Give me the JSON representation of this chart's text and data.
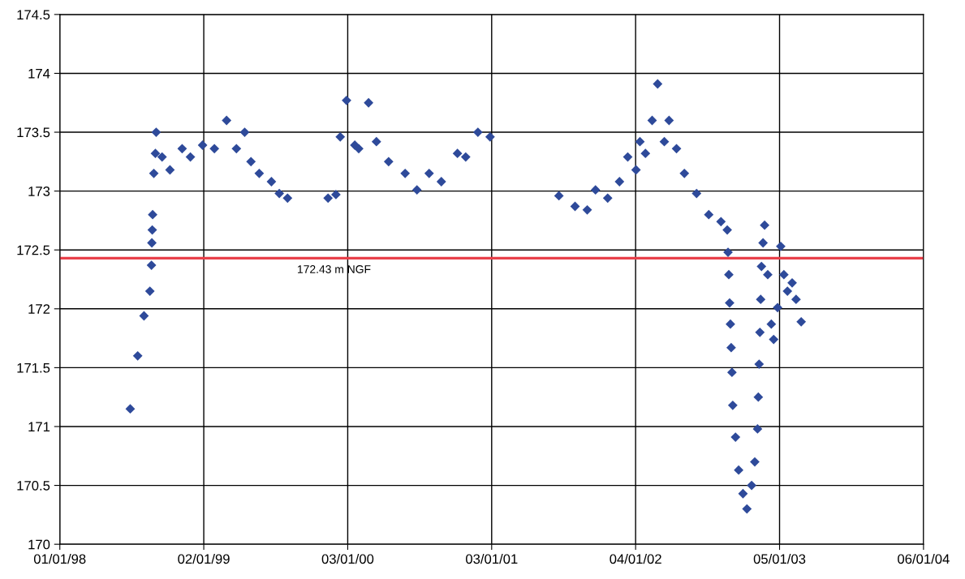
{
  "chart_data": {
    "type": "scatter",
    "marker": "diamond",
    "grid": true,
    "xlim": [
      "1998-01-01",
      "2004-01-06"
    ],
    "xticks": [
      {
        "value": "1998-01-01",
        "label": "01/01/98"
      },
      {
        "value": "1999-01-02",
        "label": "02/01/99"
      },
      {
        "value": "2000-01-03",
        "label": "03/01/00"
      },
      {
        "value": "2001-01-03",
        "label": "03/01/01"
      },
      {
        "value": "2002-01-04",
        "label": "04/01/02"
      },
      {
        "value": "2003-01-05",
        "label": "05/01/03"
      },
      {
        "value": "2004-01-06",
        "label": "06/01/04"
      }
    ],
    "ylim": [
      170,
      174.5
    ],
    "yticks": [
      170,
      170.5,
      171,
      171.5,
      172,
      172.5,
      173,
      173.5,
      174,
      174.5
    ],
    "ref_lines": [
      {
        "axis": "y",
        "value": 172.43,
        "label": "172.43 m NGF",
        "color": "#e8404a"
      }
    ],
    "series": [
      {
        "color": "#2e4a9a",
        "x": [
          "1998-06-29",
          "1998-07-18",
          "1998-08-03",
          "1998-08-18",
          "1998-08-22",
          "1998-08-23",
          "1998-08-24",
          "1998-08-25",
          "1998-08-28",
          "1998-09-01",
          "1998-09-03",
          "1998-09-18",
          "1998-10-08",
          "1998-11-08",
          "1998-11-29",
          "1998-12-30",
          "1999-01-29",
          "1999-03-01",
          "1999-03-26",
          "1999-04-16",
          "1999-05-02",
          "1999-05-23",
          "1999-06-23",
          "1999-07-13",
          "1999-08-03",
          "1999-11-14",
          "1999-12-04",
          "1999-12-15",
          "1999-12-31",
          "2000-01-21",
          "2000-01-31",
          "2000-02-25",
          "2000-03-16",
          "2000-04-16",
          "2000-05-28",
          "2000-06-27",
          "2000-07-28",
          "2000-08-28",
          "2000-10-08",
          "2000-10-29",
          "2000-11-29",
          "2000-12-30",
          "2001-06-23",
          "2001-08-03",
          "2001-09-03",
          "2001-09-24",
          "2001-10-25",
          "2001-11-24",
          "2001-12-15",
          "2002-01-05",
          "2002-01-15",
          "2002-01-29",
          "2002-02-15",
          "2002-03-01",
          "2002-03-18",
          "2002-03-30",
          "2002-04-18",
          "2002-05-08",
          "2002-06-08",
          "2002-07-09",
          "2002-08-09",
          "2002-08-25",
          "2002-08-27",
          "2002-08-29",
          "2002-08-31",
          "2002-09-02",
          "2002-09-04",
          "2002-09-06",
          "2002-09-08",
          "2002-09-15",
          "2002-09-23",
          "2002-10-04",
          "2002-10-14",
          "2002-10-26",
          "2002-11-03",
          "2002-11-10",
          "2002-11-12",
          "2002-11-14",
          "2002-11-16",
          "2002-11-18",
          "2002-11-20",
          "2002-11-24",
          "2002-11-28",
          "2002-12-06",
          "2002-12-15",
          "2002-12-21",
          "2002-12-31",
          "2003-01-08",
          "2003-01-16",
          "2003-01-25",
          "2003-02-06",
          "2003-02-16",
          "2003-03-01"
        ],
        "values": [
          171.15,
          171.6,
          171.94,
          172.15,
          172.37,
          172.56,
          172.67,
          172.8,
          173.15,
          173.32,
          173.5,
          173.29,
          173.18,
          173.36,
          173.29,
          173.39,
          173.36,
          173.6,
          173.36,
          173.5,
          173.25,
          173.15,
          173.08,
          172.98,
          172.94,
          172.94,
          172.97,
          173.46,
          173.77,
          173.39,
          173.36,
          173.75,
          173.42,
          173.25,
          173.15,
          173.01,
          173.15,
          173.08,
          173.32,
          173.29,
          173.5,
          173.46,
          172.96,
          172.87,
          172.84,
          173.01,
          172.94,
          173.08,
          173.29,
          173.18,
          173.42,
          173.32,
          173.6,
          173.91,
          173.42,
          173.6,
          173.36,
          173.15,
          172.98,
          172.8,
          172.74,
          172.67,
          172.48,
          172.29,
          172.05,
          171.87,
          171.67,
          171.46,
          171.18,
          170.91,
          170.63,
          170.43,
          170.3,
          170.5,
          170.7,
          170.98,
          171.25,
          171.53,
          171.8,
          172.08,
          172.36,
          172.56,
          172.71,
          172.29,
          171.87,
          171.74,
          172.01,
          172.53,
          172.29,
          172.15,
          172.22,
          172.08,
          171.89
        ]
      }
    ]
  }
}
